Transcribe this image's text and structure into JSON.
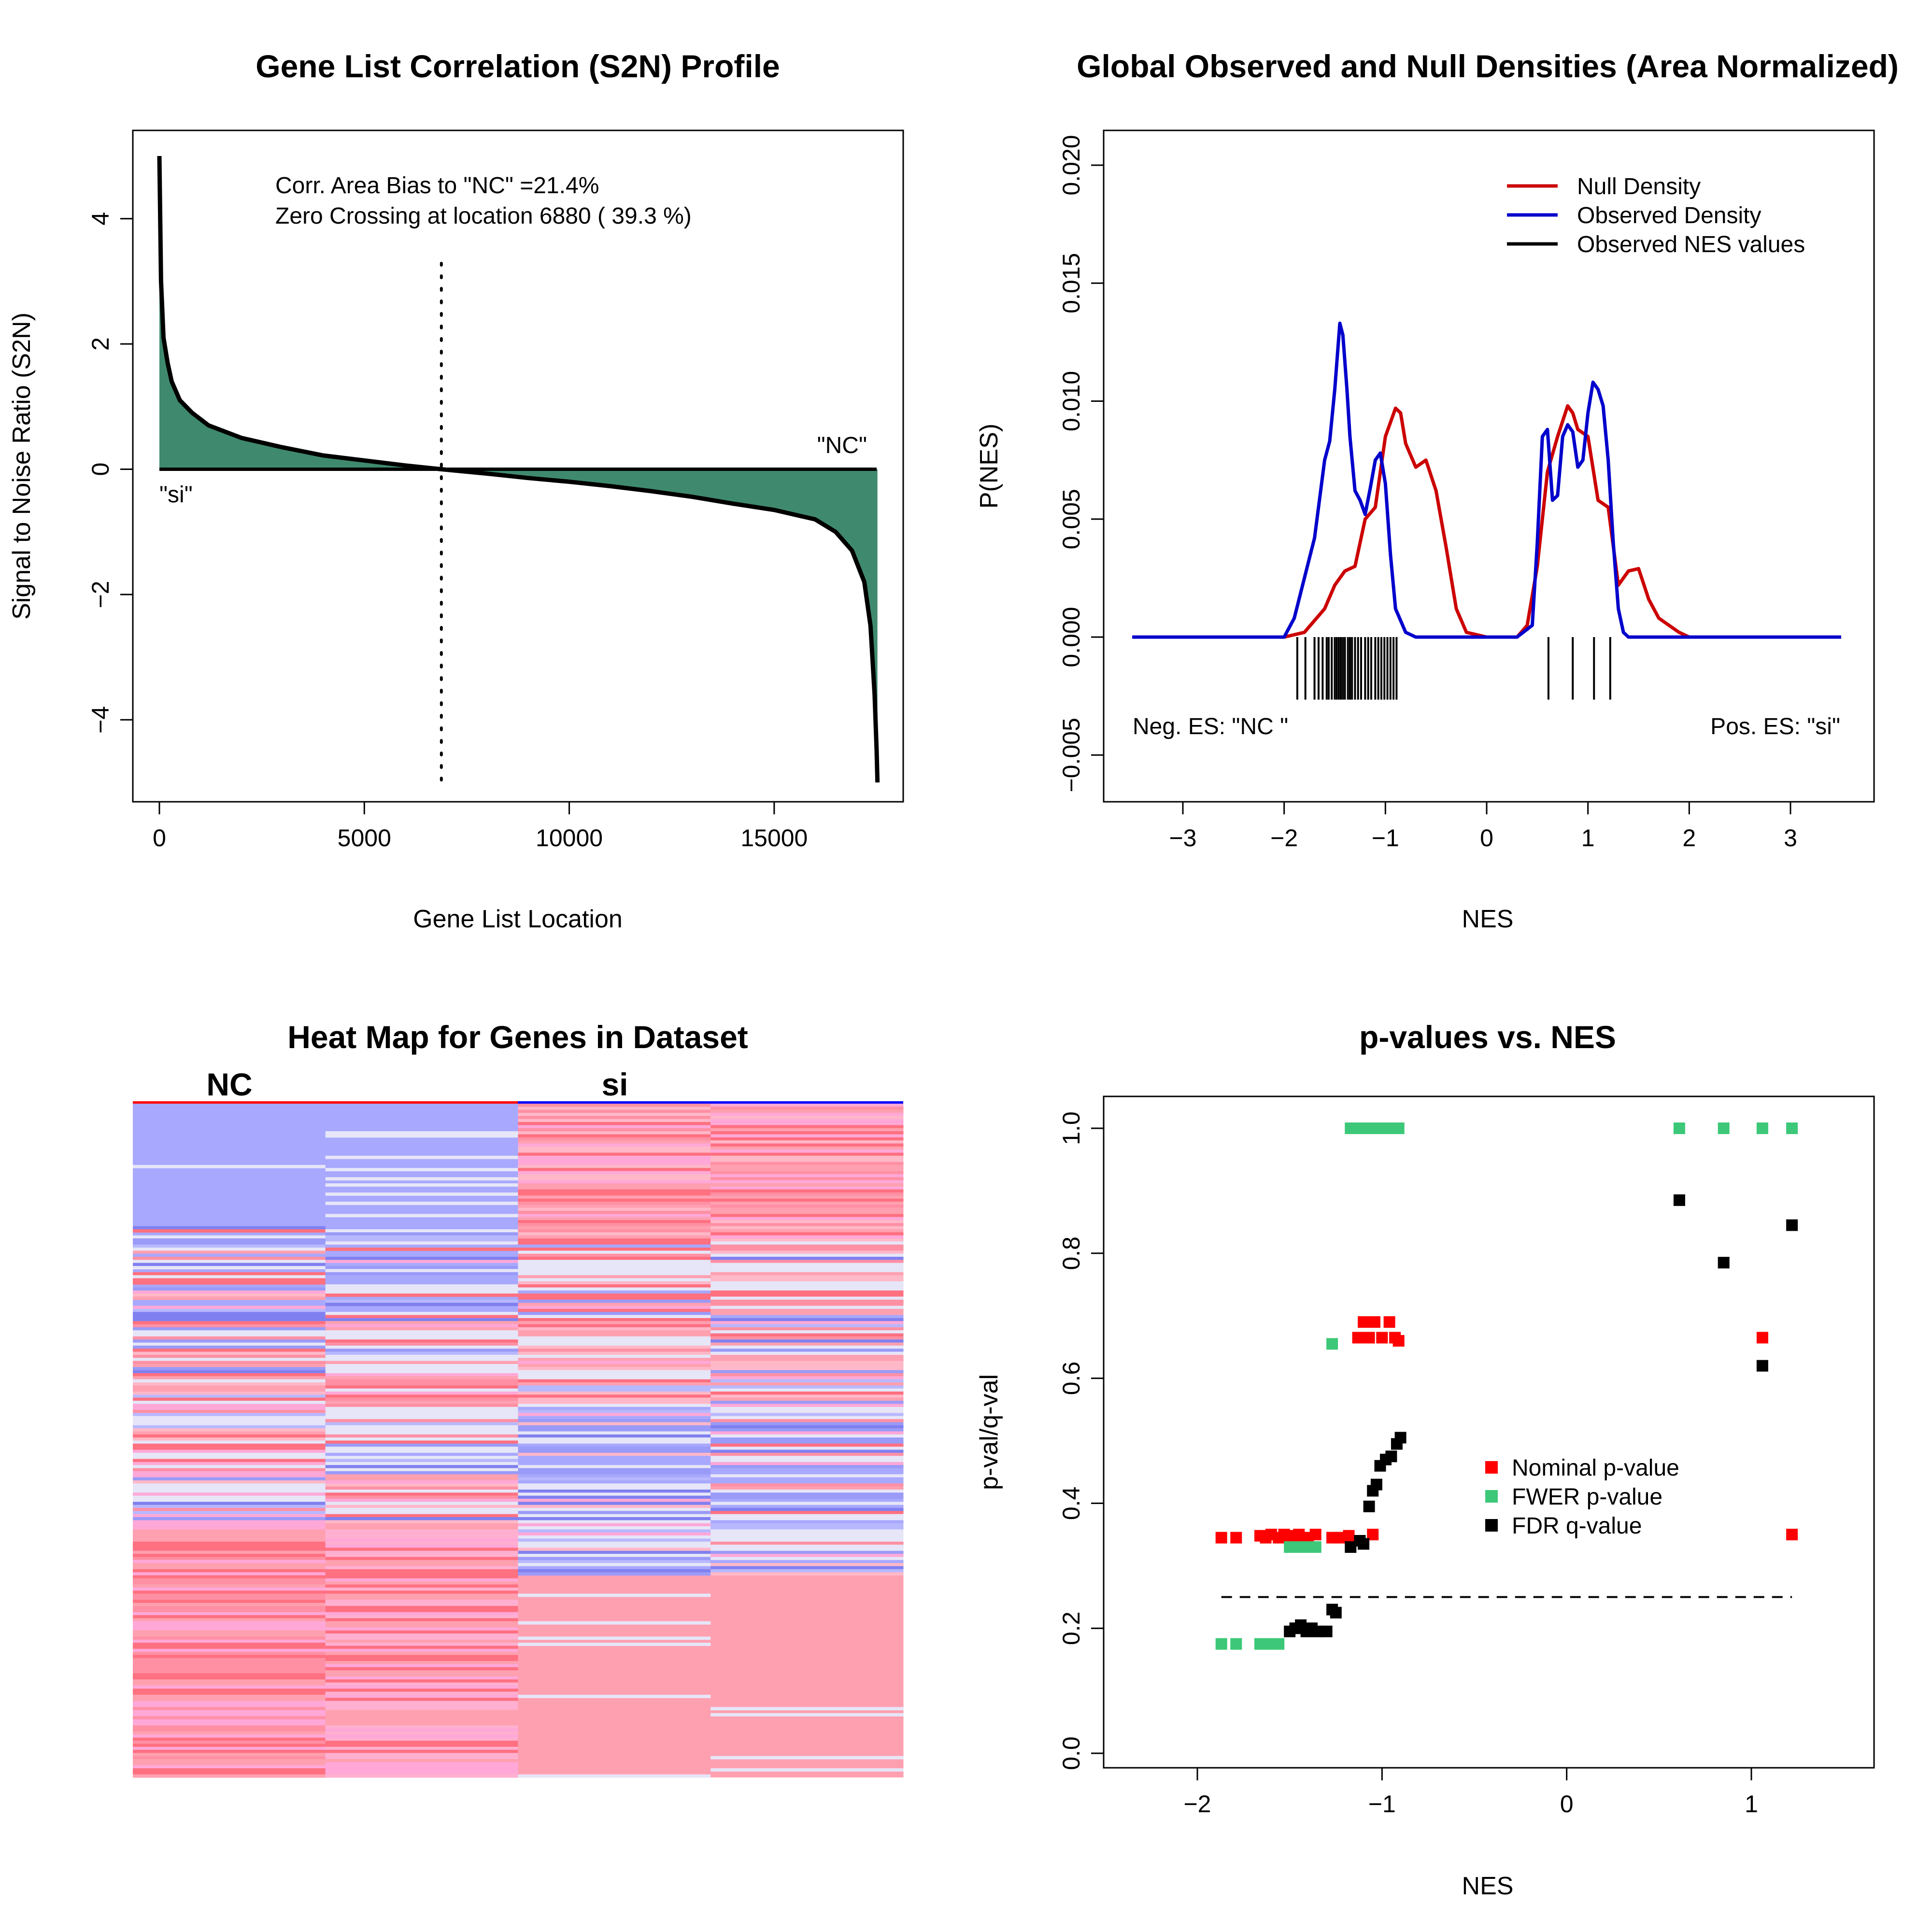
{
  "chart_data": [
    {
      "type": "area",
      "title": "Gene List Correlation (S2N) Profile",
      "xlabel": "Gene List Location",
      "ylabel": "Signal to Noise Ratio (S2N)",
      "xlim": [
        0,
        17500
      ],
      "ylim": [
        -5,
        5
      ],
      "xticks": [
        0,
        5000,
        10000,
        15000
      ],
      "yticks": [
        -4,
        -2,
        0,
        2,
        4
      ],
      "series": [
        {
          "x": [
            0,
            40,
            100,
            200,
            300,
            500,
            800,
            1200,
            2000,
            3000,
            4000,
            5000,
            6000,
            6880,
            8000,
            9000,
            10000,
            11000,
            12000,
            13000,
            14000,
            15000,
            16000,
            16500,
            16900,
            17200,
            17350,
            17450,
            17500,
            17520
          ],
          "values": [
            5.0,
            3.0,
            2.1,
            1.7,
            1.4,
            1.1,
            0.9,
            0.7,
            0.5,
            0.35,
            0.22,
            0.14,
            0.06,
            0.0,
            -0.07,
            -0.14,
            -0.2,
            -0.27,
            -0.35,
            -0.44,
            -0.55,
            -0.65,
            -0.8,
            -1.0,
            -1.3,
            -1.8,
            -2.5,
            -3.6,
            -4.5,
            -5.0
          ]
        }
      ],
      "annotations": {
        "line1": "Corr. Area Bias to \"NC\" =21.4%",
        "line2": "Zero Crossing at location  6880  ( 39.3  %)",
        "pos_label": "\"NC\"",
        "neg_label": "\"si\""
      },
      "zero_crossing": 6880,
      "fill_color": "#3F8A6E"
    },
    {
      "type": "line",
      "title": "Global Observed and Null Densities (Area Normalized)",
      "xlabel": "NES",
      "ylabel": "P(NES)",
      "xlim": [
        -3.6,
        3.8
      ],
      "ylim": [
        -0.007,
        0.022
      ],
      "xticks": [
        -3,
        -2,
        -1,
        0,
        1,
        2,
        3
      ],
      "yticks": [
        -0.005,
        0.0,
        0.005,
        0.01,
        0.015,
        0.02
      ],
      "ytick_labels": [
        "−0.005",
        "0.000",
        "0.005",
        "0.010",
        "0.015",
        "0.020"
      ],
      "legend": [
        "Null Density",
        "Observed Density",
        "Observed NES values"
      ],
      "legend_position": "top-right",
      "series": [
        {
          "name": "Null Density",
          "color": "#CC0000",
          "x": [
            -3.5,
            -2.0,
            -1.8,
            -1.6,
            -1.5,
            -1.4,
            -1.3,
            -1.2,
            -1.1,
            -1.0,
            -0.9,
            -0.85,
            -0.8,
            -0.7,
            -0.6,
            -0.5,
            -0.4,
            -0.3,
            -0.2,
            0.0,
            0.3,
            0.4,
            0.5,
            0.6,
            0.7,
            0.8,
            0.85,
            0.9,
            1.0,
            1.1,
            1.2,
            1.3,
            1.4,
            1.5,
            1.6,
            1.7,
            1.8,
            1.9,
            2.0,
            3.5
          ],
          "values": [
            0,
            0,
            0.0002,
            0.0012,
            0.0022,
            0.0028,
            0.003,
            0.005,
            0.0055,
            0.0085,
            0.0097,
            0.0095,
            0.0082,
            0.0072,
            0.0075,
            0.0062,
            0.0038,
            0.0012,
            0.0002,
            0,
            0,
            0.0005,
            0.003,
            0.007,
            0.0085,
            0.0098,
            0.0095,
            0.0088,
            0.0085,
            0.0058,
            0.0055,
            0.0022,
            0.0028,
            0.0029,
            0.0016,
            0.0008,
            0.0005,
            0.0002,
            0,
            0
          ]
        },
        {
          "name": "Observed Density",
          "color": "#0000CC",
          "x": [
            -3.5,
            -2.0,
            -1.9,
            -1.8,
            -1.7,
            -1.6,
            -1.55,
            -1.5,
            -1.45,
            -1.42,
            -1.38,
            -1.35,
            -1.3,
            -1.25,
            -1.2,
            -1.15,
            -1.1,
            -1.05,
            -1.0,
            -0.95,
            -0.9,
            -0.8,
            -0.7,
            -0.5,
            0.3,
            0.45,
            0.5,
            0.55,
            0.6,
            0.65,
            0.7,
            0.75,
            0.8,
            0.85,
            0.9,
            0.95,
            1.0,
            1.05,
            1.1,
            1.15,
            1.2,
            1.25,
            1.3,
            1.35,
            1.4,
            1.5,
            3.5
          ],
          "values": [
            0,
            0,
            0.0008,
            0.0025,
            0.0042,
            0.0075,
            0.0083,
            0.0105,
            0.0133,
            0.0128,
            0.0105,
            0.0085,
            0.0062,
            0.0058,
            0.0052,
            0.0063,
            0.0075,
            0.0078,
            0.0065,
            0.0035,
            0.0012,
            0.0002,
            0,
            0,
            0,
            0.0005,
            0.004,
            0.0085,
            0.0088,
            0.0058,
            0.006,
            0.0085,
            0.009,
            0.0087,
            0.0072,
            0.0075,
            0.0095,
            0.0108,
            0.0105,
            0.0098,
            0.0075,
            0.004,
            0.0012,
            0.0002,
            0,
            0,
            0
          ]
        }
      ],
      "observed_nes": [
        -1.87,
        -1.79,
        -1.7,
        -1.66,
        -1.62,
        -1.58,
        -1.56,
        -1.53,
        -1.5,
        -1.48,
        -1.46,
        -1.44,
        -1.42,
        -1.4,
        -1.37,
        -1.35,
        -1.33,
        -1.3,
        -1.27,
        -1.24,
        -1.2,
        -1.17,
        -1.14,
        -1.1,
        -1.07,
        -1.04,
        -1.01,
        -0.98,
        -0.95,
        -0.92,
        -0.89,
        0.61,
        0.85,
        1.06,
        1.22
      ],
      "annotations": {
        "neg": "Neg. ES: \"NC \"",
        "pos": "Pos. ES: \"si\""
      }
    },
    {
      "type": "heatmap",
      "title": "Heat Map for Genes in Dataset",
      "columns": [
        "NC",
        "NC",
        "si",
        "si"
      ],
      "group_labels": [
        "NC",
        "si"
      ],
      "group_colors": [
        "#FF0000",
        "#0000FF"
      ],
      "colors": {
        "blue_base": "#A8A8FF",
        "red_base": "#FFA0B0",
        "pink_base": "#FFA8D8",
        "light": "#E6E6F8",
        "deep_red": "#FF7080",
        "deep_blue": "#8080F0"
      }
    },
    {
      "type": "scatter",
      "title": "p-values vs. NES",
      "xlabel": "NES",
      "ylabel": "p-val/q-val",
      "xlim": [
        -2.5,
        1.7
      ],
      "ylim": [
        -0.04,
        1.04
      ],
      "xticks": [
        -2,
        -1,
        0,
        1
      ],
      "yticks": [
        0.0,
        0.2,
        0.4,
        0.6,
        0.8,
        1.0
      ],
      "threshold": 0.25,
      "legend": [
        "Nominal p-value",
        "FWER p-value",
        "FDR q-value"
      ],
      "legend_position": "center-right",
      "series": [
        {
          "name": "Nominal p-value",
          "color": "#FF0000",
          "x": [
            -1.87,
            -1.79,
            -1.66,
            -1.63,
            -1.6,
            -1.56,
            -1.53,
            -1.5,
            -1.48,
            -1.45,
            -1.43,
            -1.4,
            -1.36,
            -1.27,
            -1.23,
            -1.18,
            -1.05,
            -1.13,
            -1.1,
            -1.07,
            -1.04,
            -1.0,
            -0.96,
            -0.93,
            -0.91,
            1.06,
            1.22
          ],
          "values": [
            0.345,
            0.345,
            0.348,
            0.345,
            0.35,
            0.345,
            0.35,
            0.345,
            0.348,
            0.35,
            0.345,
            0.345,
            0.35,
            0.345,
            0.345,
            0.348,
            0.35,
            0.665,
            0.69,
            0.665,
            0.69,
            0.665,
            0.69,
            0.665,
            0.66,
            0.665,
            0.35
          ]
        },
        {
          "name": "FWER p-value",
          "color": "#3CC878",
          "x": [
            -1.87,
            -1.79,
            -1.66,
            -1.6,
            -1.56,
            -1.5,
            -1.46,
            -1.43,
            -1.4,
            -1.36,
            -1.27,
            -1.17,
            -1.13,
            -1.1,
            -1.07,
            -1.04,
            -1.0,
            -0.97,
            -0.94,
            -0.91,
            0.61,
            0.85,
            1.06,
            1.22
          ],
          "values": [
            0.175,
            0.175,
            0.175,
            0.175,
            0.175,
            0.33,
            0.33,
            0.33,
            0.33,
            0.33,
            0.655,
            1.0,
            1.0,
            1.0,
            1.0,
            1.0,
            1.0,
            1.0,
            1.0,
            1.0,
            1.0,
            1.0,
            1.0,
            1.0
          ]
        },
        {
          "name": "FDR q-value",
          "color": "#000000",
          "x": [
            -1.5,
            -1.47,
            -1.44,
            -1.41,
            -1.38,
            -1.35,
            -1.3,
            -1.27,
            -1.25,
            -1.17,
            -1.12,
            -1.1,
            -1.07,
            -1.05,
            -1.03,
            -1.01,
            -0.98,
            -0.95,
            -0.92,
            -0.9,
            0.61,
            0.85,
            1.06,
            1.22
          ],
          "values": [
            0.195,
            0.2,
            0.205,
            0.195,
            0.2,
            0.195,
            0.195,
            0.23,
            0.225,
            0.33,
            0.34,
            0.335,
            0.395,
            0.42,
            0.43,
            0.46,
            0.47,
            0.475,
            0.495,
            0.505,
            0.885,
            0.785,
            0.62,
            0.845
          ]
        }
      ]
    }
  ]
}
